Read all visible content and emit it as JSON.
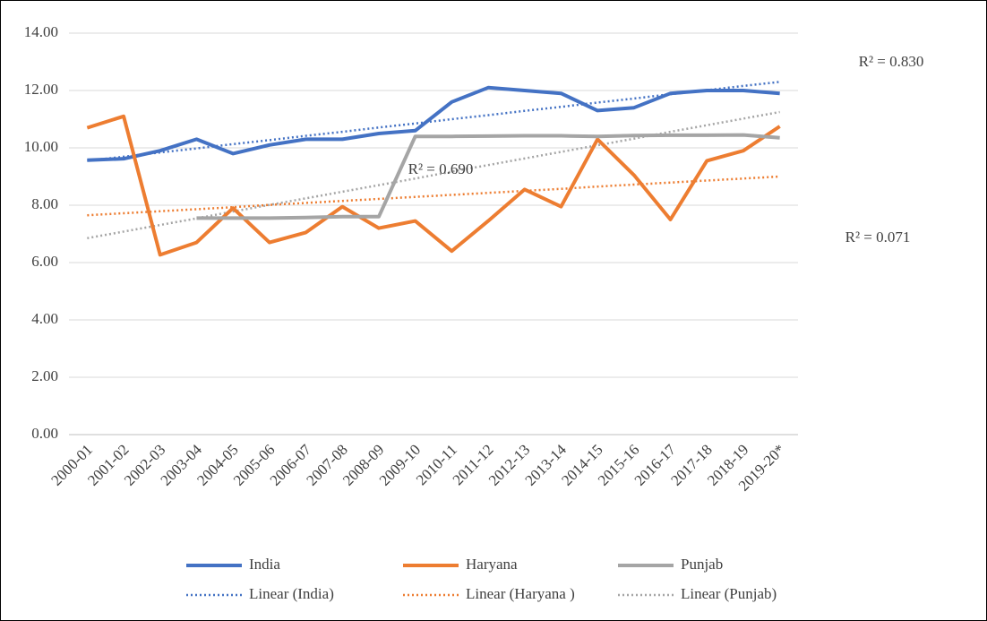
{
  "chart_data": {
    "type": "line",
    "categories": [
      "2000-01",
      "2001-02",
      "2002-03",
      "2003-04",
      "2004-05",
      "2005-06",
      "2006-07",
      "2007-08",
      "2008-09",
      "2009-10",
      "2010-11",
      "2011-12",
      "2012-13",
      "2013-14",
      "2014-15",
      "2015-16",
      "2016-17",
      "2017-18",
      "2018-19",
      "2019-20*"
    ],
    "series": [
      {
        "name": "India",
        "color": "#4472c4",
        "style": "solid",
        "values": [
          9.57,
          9.62,
          9.9,
          10.3,
          9.8,
          10.1,
          10.3,
          10.3,
          10.5,
          10.6,
          11.6,
          12.1,
          12.0,
          11.9,
          11.3,
          11.4,
          11.9,
          12.0,
          12.0,
          11.9
        ]
      },
      {
        "name": "Haryana",
        "color": "#ed7d31",
        "style": "solid",
        "values": [
          10.7,
          11.1,
          6.27,
          6.7,
          7.9,
          6.7,
          7.05,
          7.95,
          7.2,
          7.45,
          6.4,
          7.45,
          8.55,
          7.95,
          10.3,
          9.05,
          7.5,
          9.55,
          9.9,
          10.75
        ]
      },
      {
        "name": "Punjab",
        "color": "#a5a5a5",
        "style": "solid",
        "values": [
          null,
          null,
          null,
          7.55,
          7.55,
          7.55,
          7.57,
          7.6,
          7.6,
          10.4,
          10.4,
          10.41,
          10.42,
          10.42,
          10.4,
          10.43,
          10.44,
          10.44,
          10.45,
          10.35
        ]
      },
      {
        "name": "Linear (India)",
        "color": "#4472c4",
        "style": "dotted",
        "values": [
          9.55,
          9.69,
          9.84,
          9.98,
          10.13,
          10.27,
          10.42,
          10.56,
          10.71,
          10.85,
          11.0,
          11.14,
          11.29,
          11.43,
          11.58,
          11.72,
          11.87,
          12.01,
          12.16,
          12.3
        ]
      },
      {
        "name": "Linear (Haryana )",
        "color": "#ed7d31",
        "style": "dotted",
        "values": [
          7.65,
          7.72,
          7.79,
          7.86,
          7.93,
          8.01,
          8.08,
          8.15,
          8.22,
          8.29,
          8.36,
          8.43,
          8.5,
          8.57,
          8.65,
          8.72,
          8.79,
          8.86,
          8.93,
          9.0
        ]
      },
      {
        "name": "Linear (Punjab)",
        "color": "#a5a5a5",
        "style": "dotted",
        "values": [
          6.85,
          7.08,
          7.31,
          7.54,
          7.78,
          8.01,
          8.24,
          8.47,
          8.7,
          8.93,
          9.17,
          9.4,
          9.63,
          9.86,
          10.09,
          10.32,
          10.56,
          10.79,
          11.02,
          11.25
        ]
      }
    ],
    "annotations": [
      "R² = 0.830",
      "R² = 0.690",
      "R² = 0.071"
    ],
    "ylim": [
      0,
      14
    ],
    "yticks": [
      {
        "value": 0,
        "label": "0.00"
      },
      {
        "value": 2,
        "label": "2.00"
      },
      {
        "value": 4,
        "label": "4.00"
      },
      {
        "value": 6,
        "label": "6.00"
      },
      {
        "value": 8,
        "label": "8.00"
      },
      {
        "value": 10,
        "label": "10.00"
      },
      {
        "value": 12,
        "label": "12.00"
      },
      {
        "value": 14,
        "label": "14.00"
      }
    ],
    "grid": true
  }
}
